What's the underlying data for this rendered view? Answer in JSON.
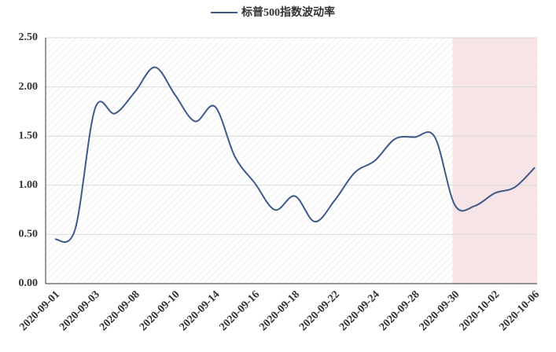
{
  "chart_data": {
    "type": "line",
    "categories": [
      "2020-09-01",
      null,
      "2020-09-03",
      null,
      "2020-09-08",
      null,
      "2020-09-10",
      null,
      "2020-09-14",
      null,
      "2020-09-16",
      null,
      "2020-09-18",
      null,
      "2020-09-22",
      null,
      "2020-09-24",
      null,
      "2020-09-28",
      null,
      "2020-09-30",
      null,
      "2020-10-02",
      null,
      "2020-10-06"
    ],
    "series": [
      {
        "name": "标普500指数波动率",
        "color": "#3d5a8a",
        "values": [
          0.45,
          0.55,
          1.78,
          1.73,
          1.95,
          2.2,
          1.92,
          1.65,
          1.8,
          1.29,
          1.02,
          0.75,
          0.89,
          0.63,
          0.85,
          1.13,
          1.25,
          1.47,
          1.49,
          1.49,
          0.8,
          0.79,
          0.92,
          0.98,
          1.18
        ]
      }
    ],
    "ylim": [
      0,
      2.5
    ],
    "yticks": [
      {
        "value": 0,
        "label": "0.00"
      },
      {
        "value": 0.5,
        "label": "0.50"
      },
      {
        "value": 1,
        "label": "1.00"
      },
      {
        "value": 1.5,
        "label": "1.50"
      },
      {
        "value": 2,
        "label": "2.00"
      },
      {
        "value": 2.5,
        "label": "2.50"
      }
    ],
    "grid": true,
    "smooth": true,
    "highlight_range": [
      20,
      24
    ],
    "highlight_color": "#f6dfe2"
  }
}
